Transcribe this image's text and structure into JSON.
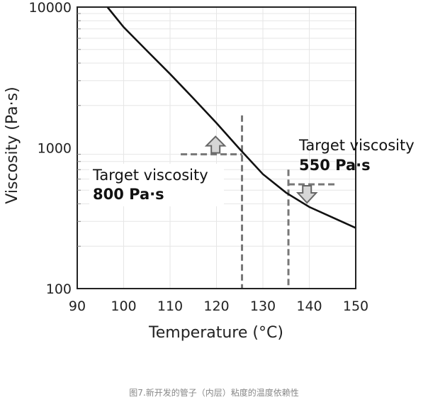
{
  "chart_data": {
    "type": "line",
    "xlabel": "Temperature (°C)",
    "ylabel": "Viscosity (Pa·s)",
    "xlim": [
      90,
      150
    ],
    "ylim": [
      100,
      10000
    ],
    "y_scale": "log",
    "x_ticks": [
      "90",
      "100",
      "110",
      "120",
      "130",
      "140",
      "150"
    ],
    "y_ticks": [
      "100",
      "1000",
      "10000"
    ],
    "grid": true,
    "series": [
      {
        "x": [
          96.5,
          100,
          105,
          110,
          115,
          120,
          125,
          130,
          135,
          140,
          145,
          150
        ],
        "y": [
          10000,
          7200,
          4900,
          3350,
          2250,
          1500,
          980,
          650,
          480,
          380,
          320,
          270
        ]
      }
    ],
    "annotations": [
      {
        "line1": "Target viscosity",
        "line2": "800 Pa·s",
        "target_x": 125.5,
        "target_y": 900,
        "direction": "up"
      },
      {
        "line1": "Target viscosity",
        "line2": "550 Pa·s",
        "target_x": 135.5,
        "target_y": 550,
        "direction": "down"
      }
    ]
  },
  "caption": "图7.新开发的管子（内层）粘度的温度依赖性",
  "colors": {
    "curve": "#111111",
    "guide": "#777777",
    "arrow_fill": "#d6d6d6",
    "arrow_stroke": "#666666",
    "frame": "#222222",
    "grid": "#e6e6e6"
  }
}
